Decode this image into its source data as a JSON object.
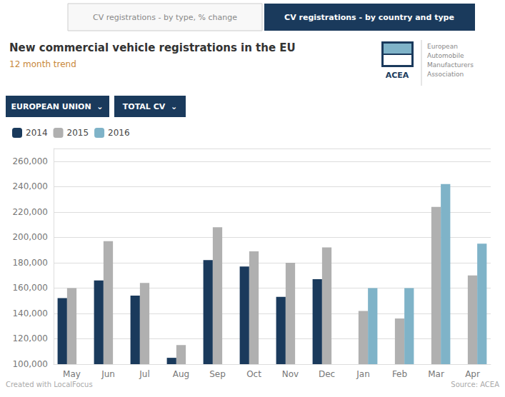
{
  "chart_data": {
    "type": "bar",
    "title": "New commercial vehicle registrations in the EU",
    "subtitle": "12 month trend",
    "categories": [
      "May",
      "Jun",
      "Jul",
      "Aug",
      "Sep",
      "Oct",
      "Nov",
      "Dec",
      "Jan",
      "Feb",
      "Mar",
      "Apr"
    ],
    "series": [
      {
        "name": "2014",
        "color": "#1a3a5c",
        "values": [
          152000,
          166000,
          154000,
          105000,
          182000,
          177000,
          153000,
          167000,
          null,
          null,
          null,
          null
        ]
      },
      {
        "name": "2015",
        "color": "#b0b0b0",
        "values": [
          160000,
          197000,
          164000,
          115000,
          208000,
          189000,
          180000,
          192000,
          142000,
          136000,
          224000,
          170000
        ]
      },
      {
        "name": "2016",
        "color": "#7fb3c8",
        "values": [
          null,
          null,
          null,
          null,
          null,
          null,
          null,
          null,
          160000,
          160000,
          242000,
          195000
        ]
      }
    ],
    "ylim": [
      100000,
      270000
    ],
    "yticks": [
      {
        "value": 100000,
        "label": "100,000"
      },
      {
        "value": 120000,
        "label": "120,000"
      },
      {
        "value": 140000,
        "label": "140,000"
      },
      {
        "value": 160000,
        "label": "160,000"
      },
      {
        "value": 180000,
        "label": "180,000"
      },
      {
        "value": 200000,
        "label": "200,000"
      },
      {
        "value": 220000,
        "label": "220,000"
      },
      {
        "value": 240000,
        "label": "240,000"
      },
      {
        "value": 260000,
        "label": "260,000"
      }
    ],
    "grid": true,
    "legend": "top-left",
    "annotations": [
      "CV registrations - by type, % change",
      "CV registrations - by country and type",
      "EUROPEAN UNION  ⌄",
      "TOTAL CV  ⌄",
      "ACEA",
      "European\nAutomobile\nManufacturers\nAssociation",
      "Created with LocalFocus",
      "Source: ACEA"
    ]
  }
}
